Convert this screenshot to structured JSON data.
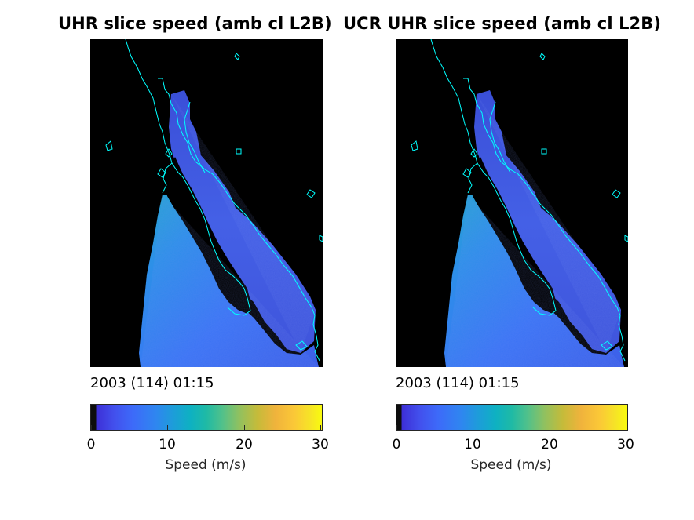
{
  "panels": [
    {
      "title": "UHR slice speed (amb cl L2B)",
      "timestamp": "2003 (114) 01:15",
      "colorbar": {
        "label": "Speed (m/s)",
        "min": 0,
        "max": 30,
        "ticks": [
          "0",
          "10",
          "20",
          "30"
        ],
        "colormap": "parula"
      }
    },
    {
      "title": "UCR UHR slice speed (amb cl L2B)",
      "timestamp": "2003 (114) 01:15",
      "colorbar": {
        "label": "Speed (m/s)",
        "min": 0,
        "max": 30,
        "ticks": [
          "0",
          "10",
          "20",
          "30"
        ],
        "colormap": "parula"
      }
    }
  ],
  "colors": {
    "background": "#000000",
    "coastline": "#00ffff",
    "land_mask": "#000000"
  }
}
